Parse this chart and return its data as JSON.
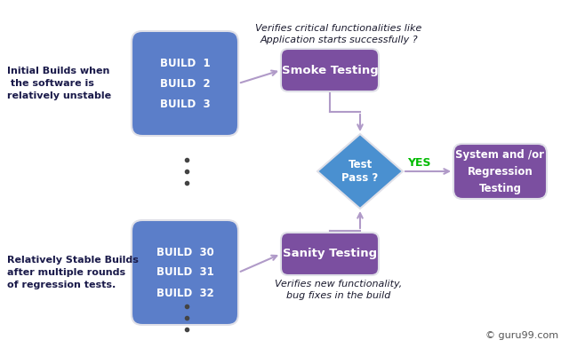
{
  "blue_box_color": "#5b7ec9",
  "purple_box_color": "#7b4fa0",
  "diamond_color": "#4a90d0",
  "arrow_color": "#b09ac8",
  "yes_color": "#00bb00",
  "text_dark": "#1a1a2e",
  "text_label_color": "#1a1a4a",
  "build_top": [
    "BUILD  1",
    "BUILD  2",
    "BUILD  3"
  ],
  "build_bottom": [
    "BUILD  30",
    "BUILD  31",
    "BUILD  32"
  ],
  "smoke_label": "Smoke Testing",
  "sanity_label": "Sanity Testing",
  "diamond_label": "Test\nPass ?",
  "regression_label": "System and /or\nRegression\nTesting",
  "annotation_top": "Verifies critical functionalities like\nApplication starts successfully ?",
  "annotation_bottom": "Verifies new functionality,\nbug fixes in the build",
  "left_top_label": "Initial Builds when\n the software is\nrelatively unstable",
  "left_bottom_label": "Relatively Stable Builds\nafter multiple rounds\nof regression tests.",
  "yes_label": "YES",
  "copyright": "© guru99.com"
}
